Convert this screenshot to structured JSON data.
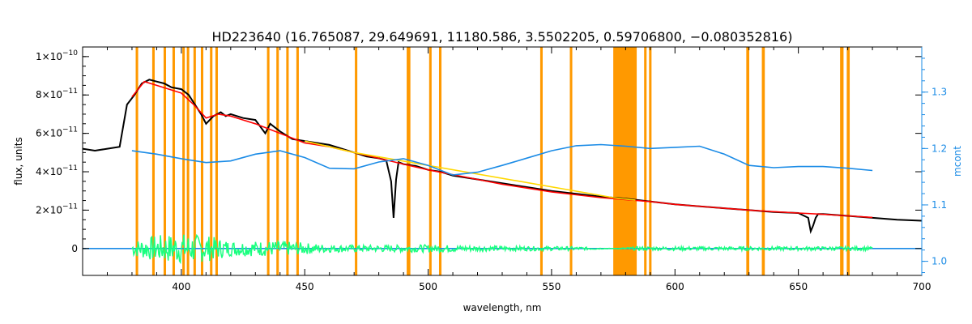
{
  "chart_data": {
    "type": "line",
    "title": "HD223640   (16.765087, 29.649691, 11180.586, 3.5502205, 0.59706800, −0.080352816)",
    "xlabel": "wavelength, nm",
    "ylabel": "flux, units",
    "y2label": "mcont",
    "xlim": [
      360,
      700
    ],
    "ylim": [
      -1.4e-11,
      1.05e-10
    ],
    "y2lim": [
      0.975,
      1.38
    ],
    "x_ticks": [
      400,
      450,
      500,
      550,
      600,
      650,
      700
    ],
    "x_tick_labels": [
      "400",
      "450",
      "500",
      "550",
      "600",
      "650",
      "700"
    ],
    "y_ticks": [
      0,
      2e-11,
      4e-11,
      6e-11,
      8e-11,
      1e-10
    ],
    "y_tick_labels": [
      {
        "mant": "0",
        "exp": ""
      },
      {
        "mant": "2×10",
        "exp": "−11"
      },
      {
        "mant": "4×10",
        "exp": "−11"
      },
      {
        "mant": "6×10",
        "exp": "−11"
      },
      {
        "mant": "8×10",
        "exp": "−11"
      },
      {
        "mant": "1×10",
        "exp": "−10"
      }
    ],
    "y2_ticks": [
      1.0,
      1.1,
      1.2,
      1.3
    ],
    "y2_tick_labels": [
      "1.0",
      "1.1",
      "1.2",
      "1.3"
    ],
    "masked_ranges": [
      [
        381.5,
        382.5
      ],
      [
        388.2,
        389.2
      ],
      [
        392.8,
        393.8
      ],
      [
        396.4,
        397.4
      ],
      [
        400.4,
        401.4
      ],
      [
        402.2,
        403.2
      ],
      [
        404.9,
        405.9
      ],
      [
        407.9,
        408.9
      ],
      [
        411.6,
        412.6
      ],
      [
        413.8,
        414.8
      ],
      [
        434.7,
        435.7
      ],
      [
        438.5,
        439.5
      ],
      [
        442.5,
        443.5
      ],
      [
        446.6,
        447.6
      ],
      [
        470.3,
        471.3
      ],
      [
        491.3,
        492.8
      ],
      [
        500.4,
        501.4
      ],
      [
        504.4,
        505.4
      ],
      [
        545.4,
        546.4
      ],
      [
        557.4,
        558.4
      ],
      [
        575.0,
        584.5
      ],
      [
        587.5,
        588.5
      ],
      [
        589.5,
        590.5
      ],
      [
        628.9,
        630.1
      ],
      [
        635.2,
        636.4
      ],
      [
        666.9,
        668.3
      ],
      [
        669.6,
        670.8
      ]
    ],
    "series": [
      {
        "color": "#000000",
        "axis": "left",
        "x": [
          360,
          365,
          370,
          375,
          378,
          381,
          384,
          387,
          390,
          393,
          396,
          400,
          403,
          405,
          408,
          410,
          413,
          416,
          418,
          420,
          425,
          430,
          434,
          436,
          440,
          445,
          450,
          455,
          460,
          465,
          470,
          475,
          480,
          483,
          485,
          486,
          487,
          488,
          490,
          495,
          500,
          505,
          510,
          520,
          530,
          540,
          550,
          560,
          570,
          580,
          590,
          600,
          610,
          620,
          630,
          640,
          650,
          654,
          655,
          656,
          657,
          658,
          660,
          670,
          680,
          690,
          700
        ],
        "y": [
          5.2e-11,
          5.1e-11,
          5.2e-11,
          5.3e-11,
          7.5e-11,
          8e-11,
          8.6e-11,
          8.8e-11,
          8.7e-11,
          8.6e-11,
          8.4e-11,
          8.3e-11,
          8e-11,
          7.6e-11,
          7e-11,
          6.5e-11,
          6.9e-11,
          7.1e-11,
          6.9e-11,
          7e-11,
          6.8e-11,
          6.7e-11,
          6e-11,
          6.5e-11,
          6.1e-11,
          5.7e-11,
          5.6e-11,
          5.5e-11,
          5.4e-11,
          5.2e-11,
          5e-11,
          4.8e-11,
          4.7e-11,
          4.6e-11,
          3.5e-11,
          1.6e-11,
          3.6e-11,
          4.5e-11,
          4.4e-11,
          4.3e-11,
          4.1e-11,
          4e-11,
          3.8e-11,
          3.6e-11,
          3.4e-11,
          3.2e-11,
          3e-11,
          2.85e-11,
          2.7e-11,
          2.6e-11,
          2.45e-11,
          2.3e-11,
          2.2e-11,
          2.1e-11,
          2e-11,
          1.9e-11,
          1.85e-11,
          1.6e-11,
          9e-12,
          1.2e-11,
          1.6e-11,
          1.8e-11,
          1.8e-11,
          1.7e-11,
          1.6e-11,
          1.5e-11,
          1.45e-11
        ]
      },
      {
        "color": "#ff0000",
        "axis": "left",
        "x": [
          380,
          385,
          390,
          395,
          400,
          405,
          410,
          415,
          420,
          425,
          430,
          440,
          450,
          460,
          470,
          480,
          490,
          500,
          510,
          520,
          530,
          540,
          550,
          560,
          570,
          580,
          590,
          600,
          610,
          620,
          630,
          640,
          650,
          660,
          670,
          680
        ],
        "y": [
          7.9e-11,
          8.7e-11,
          8.5e-11,
          8.3e-11,
          8.1e-11,
          7.5e-11,
          6.8e-11,
          7e-11,
          6.9e-11,
          6.7e-11,
          6.5e-11,
          6e-11,
          5.5e-11,
          5.3e-11,
          5e-11,
          4.7e-11,
          4.4e-11,
          4.1e-11,
          3.85e-11,
          3.6e-11,
          3.35e-11,
          3.15e-11,
          2.95e-11,
          2.8e-11,
          2.65e-11,
          2.55e-11,
          2.45e-11,
          2.3e-11,
          2.2e-11,
          2.1e-11,
          2e-11,
          1.92e-11,
          1.85e-11,
          1.78e-11,
          1.7e-11,
          1.62e-11
        ]
      },
      {
        "color": "#ffd800",
        "axis": "left",
        "x": [
          450,
          455,
          460,
          465,
          470,
          575,
          578,
          580,
          582,
          584
        ],
        "y": [
          5.6e-11,
          5.45e-11,
          5.3e-11,
          5.15e-11,
          5e-11,
          2.65e-11,
          2.6e-11,
          2.58e-11,
          2.55e-11,
          2.52e-11
        ]
      },
      {
        "color": "#1a8be6",
        "axis": "right",
        "x": [
          380,
          390,
          400,
          410,
          420,
          430,
          440,
          450,
          460,
          470,
          480,
          490,
          500,
          510,
          520,
          530,
          540,
          550,
          560,
          570,
          580,
          590,
          600,
          610,
          620,
          630,
          640,
          650,
          660,
          670,
          680
        ],
        "y": [
          1.196,
          1.19,
          1.182,
          1.175,
          1.178,
          1.19,
          1.196,
          1.184,
          1.165,
          1.164,
          1.176,
          1.182,
          1.17,
          1.153,
          1.158,
          1.17,
          1.183,
          1.196,
          1.205,
          1.207,
          1.204,
          1.2,
          1.202,
          1.204,
          1.19,
          1.17,
          1.166,
          1.168,
          1.168,
          1.165,
          1.161
        ]
      },
      {
        "color": "#1a8be6",
        "axis": "left",
        "x": [
          360,
          700
        ],
        "y": [
          0,
          0
        ]
      },
      {
        "color": "#19ff7f",
        "axis": "left",
        "style": "noise",
        "x": [
          380,
          390,
          400,
          410,
          420,
          440,
          460,
          480,
          500,
          520,
          540,
          560,
          575,
          585,
          600,
          620,
          640,
          660,
          680
        ],
        "amplitude": [
          4e-12,
          7e-12,
          8e-12,
          7e-12,
          4e-12,
          4e-12,
          2e-12,
          1.8e-12,
          2e-12,
          1.5e-12,
          1.2e-12,
          1e-12,
          0,
          1e-12,
          1e-12,
          1e-12,
          1e-12,
          1e-12,
          1e-12
        ]
      }
    ],
    "colors": {
      "mask": "#ff9900",
      "axis": "#000000",
      "right_axis": "#1a8be6"
    },
    "grid": false,
    "legend": "none"
  }
}
